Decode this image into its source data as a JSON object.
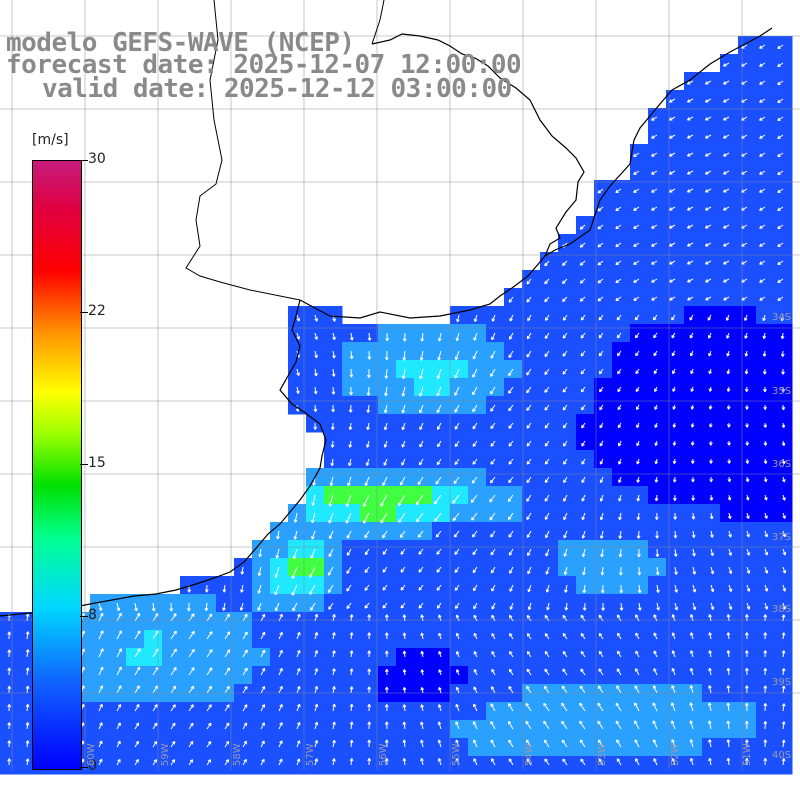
{
  "title": {
    "line1": "modelo GEFS-WAVE (NCEP)",
    "line2": "forecast date: 2025-12-07 12:00:00",
    "line3": "valid date: 2025-12-12 03:00:00"
  },
  "colorbar": {
    "unit": "[m/s]",
    "min": 0,
    "max": 30,
    "labels": [
      "30",
      "22",
      "15",
      "8",
      "0"
    ]
  },
  "grid": {
    "lat_labels": [
      "34S",
      "35S",
      "36S",
      "37S",
      "38S",
      "39S",
      "40S"
    ],
    "lon_labels": [
      "60W",
      "59W",
      "58W",
      "57W",
      "56W",
      "55W",
      "54W",
      "53W",
      "52W",
      "51W"
    ]
  },
  "colors": {
    "dark_blue": "#0000ff",
    "blue": "#1a50ff",
    "light_blue": "#2aa0ff",
    "cyan": "#20e8ff",
    "green": "#40ff40",
    "bright_green": "#10e010",
    "land": "#ffffff",
    "arrow": "#ffffff",
    "coast": "#000000"
  }
}
